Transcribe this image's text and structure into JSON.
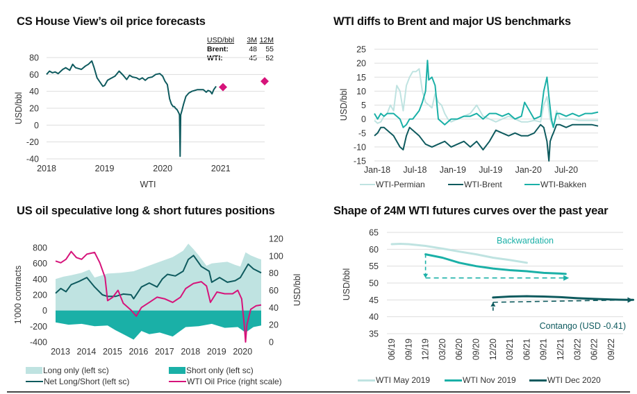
{
  "colors": {
    "dark_teal": "#0e5a5e",
    "teal": "#1ab0a7",
    "light_teal": "#bfe3e1",
    "magenta": "#d6137a",
    "grid": "#dddddd"
  },
  "chart_data": [
    {
      "id": "cs-house-view",
      "type": "line",
      "title": "CS House View’s oil price forecasts",
      "xlabel": "WTI",
      "ylabel": "USD/bbl",
      "x_ticks": [
        "2018",
        "2019",
        "2020",
        "2021"
      ],
      "y_ticks": [
        80,
        60,
        40,
        20,
        0,
        -20,
        -40
      ],
      "xlim": [
        2018.0,
        2021.9
      ],
      "ylim": [
        -40,
        80
      ],
      "grid": true,
      "series": [
        {
          "name": "WTI",
          "color": "#0e5a5e",
          "x": [
            2018.0,
            2018.05,
            2018.1,
            2018.15,
            2018.2,
            2018.28,
            2018.33,
            2018.4,
            2018.45,
            2018.5,
            2018.55,
            2018.6,
            2018.67,
            2018.72,
            2018.78,
            2018.82,
            2018.87,
            2018.92,
            2018.97,
            2019.0,
            2019.05,
            2019.1,
            2019.18,
            2019.25,
            2019.32,
            2019.38,
            2019.43,
            2019.48,
            2019.55,
            2019.6,
            2019.65,
            2019.7,
            2019.75,
            2019.82,
            2019.88,
            2019.95,
            2020.0,
            2020.04,
            2020.08,
            2020.12,
            2020.15,
            2020.18,
            2020.2,
            2020.22,
            2020.25,
            2020.28,
            2020.29,
            2020.3,
            2020.31,
            2020.33,
            2020.36,
            2020.4,
            2020.45,
            2020.5,
            2020.55,
            2020.6,
            2020.65,
            2020.7,
            2020.75,
            2020.78,
            2020.82,
            2020.85,
            2020.88,
            2020.92
          ],
          "y": [
            60,
            64,
            62,
            63,
            61,
            66,
            68,
            65,
            72,
            68,
            67,
            66,
            70,
            72,
            76,
            68,
            56,
            51,
            46,
            47,
            53,
            55,
            58,
            64,
            59,
            54,
            59,
            57,
            56,
            54,
            56,
            53,
            56,
            57,
            60,
            61,
            58,
            52,
            48,
            31,
            25,
            22,
            22,
            20,
            18,
            14,
            12,
            -37,
            12,
            17,
            25,
            34,
            38,
            40,
            41,
            42,
            42,
            42,
            39,
            41,
            40,
            37,
            42,
            46
          ]
        }
      ],
      "forecast_points": [
        {
          "label": "WTI 3M",
          "x": 2021.2,
          "y": 45,
          "color": "#d6137a"
        },
        {
          "label": "WTI 12M",
          "x": 2021.95,
          "y": 52,
          "color": "#d6137a"
        }
      ],
      "table": {
        "headers": [
          "USD/bbl",
          "3M",
          "12M"
        ],
        "rows": [
          {
            "name": "Brent:",
            "m3": "48",
            "m12": "55"
          },
          {
            "name": "WTI:",
            "m3": "45",
            "m12": "52"
          }
        ]
      }
    },
    {
      "id": "wti-diffs",
      "type": "line",
      "title": "WTI diffs to Brent and major US benchmarks",
      "xlabel": "",
      "ylabel": "USD/bbl",
      "x_ticks": [
        "Jan-18",
        "Jul-18",
        "Jan-19",
        "Jul-19",
        "Jan-20",
        "Jul-20"
      ],
      "y_ticks": [
        25,
        20,
        15,
        10,
        5,
        0,
        -5,
        -10,
        -15
      ],
      "xlim": [
        0,
        35
      ],
      "ylim": [
        -15,
        25
      ],
      "grid": true,
      "legend": "bottom",
      "series": [
        {
          "name": "WTI-Permian",
          "color": "#bfe3e1",
          "x": [
            0,
            0.5,
            1,
            1.5,
            2,
            2.5,
            3,
            3.5,
            4,
            4.5,
            5,
            5.5,
            6,
            6.5,
            7,
            7.5,
            8,
            8.5,
            9,
            9.5,
            10,
            10.5,
            11,
            11.5,
            12,
            13,
            14,
            15,
            16,
            17,
            18,
            19,
            20,
            21,
            22,
            23,
            24,
            25,
            26,
            26.5,
            27,
            27.5,
            28,
            28.5,
            29,
            30,
            31,
            32,
            33,
            34,
            35
          ],
          "y": [
            -0.5,
            -1.5,
            -1,
            1,
            2,
            5,
            3,
            12,
            10,
            3,
            12,
            15,
            17,
            17,
            18,
            10,
            6,
            5,
            4,
            9,
            6,
            5,
            2,
            0,
            -1,
            0,
            1,
            2,
            5,
            1,
            0,
            -1,
            0,
            1,
            0,
            -1,
            -1,
            -0.5,
            -1,
            5,
            8,
            0,
            -3,
            3,
            0,
            0,
            0,
            -0.5,
            -0.5,
            -0.5,
            -0.5
          ]
        },
        {
          "name": "WTI-Brent",
          "color": "#0e5a5e",
          "x": [
            0,
            0.5,
            1,
            1.5,
            2,
            3,
            4,
            4.5,
            5,
            5.5,
            6,
            6.5,
            7,
            8,
            9,
            10,
            11,
            12,
            13,
            14,
            15,
            16,
            17,
            18,
            19,
            20,
            21,
            22,
            23,
            24,
            25,
            26,
            26.5,
            27,
            27.3,
            27.5,
            27.8,
            28,
            28.5,
            29,
            30,
            31,
            32,
            33,
            34,
            35
          ],
          "y": [
            -6,
            -5,
            -3,
            -3,
            -4,
            -6,
            -10,
            -11,
            -6,
            -3,
            -4,
            -5,
            -6,
            -9,
            -10,
            -9,
            -8,
            -10,
            -9,
            -8,
            -10,
            -8,
            -11,
            -8,
            -4,
            -5,
            -6,
            -5,
            -6,
            -6,
            -5,
            -2,
            -3,
            -8,
            -15,
            -8,
            -6,
            -5,
            -2,
            -2,
            -3,
            -2,
            -2,
            -2,
            -2,
            -2.5
          ]
        },
        {
          "name": "WTI-Bakken",
          "color": "#1ab0a7",
          "x": [
            0,
            0.5,
            1,
            1.5,
            2,
            3,
            4,
            4.5,
            5,
            5.5,
            6,
            7,
            7.5,
            8,
            8.3,
            8.5,
            9,
            9.5,
            10,
            11,
            12,
            13,
            14,
            15,
            16,
            17,
            18,
            19,
            20,
            21,
            22,
            23,
            23.5,
            24,
            25,
            26,
            26.5,
            27,
            27.3,
            27.7,
            28,
            28.5,
            29,
            30,
            31,
            32,
            33,
            34,
            35
          ],
          "y": [
            2,
            0,
            2,
            1,
            2,
            2,
            0,
            -3,
            -2,
            0,
            0,
            3,
            6,
            10,
            21,
            14,
            15,
            12,
            0,
            -2,
            0,
            0,
            1,
            1,
            2,
            0,
            2,
            2,
            1,
            2,
            0,
            1,
            6,
            4,
            0,
            1,
            10,
            15,
            8,
            0,
            -3,
            2,
            2,
            1,
            2,
            1,
            2,
            2,
            2.5
          ]
        }
      ]
    },
    {
      "id": "speculative-positions",
      "type": "area",
      "title": "US oil speculative long & short futures positions",
      "ylabel_left": "1'000 contracts",
      "ylabel_right": "USD/bbl",
      "x_ticks": [
        "2013",
        "2014",
        "2015",
        "2016",
        "2017",
        "2018",
        "2019",
        "2020"
      ],
      "y_ticks_left": [
        800,
        600,
        400,
        200,
        0,
        -200,
        -400
      ],
      "y_ticks_right": [
        120,
        100,
        80,
        60,
        40,
        20,
        0
      ],
      "xlim": [
        2013.0,
        2020.9
      ],
      "ylim_left": [
        -400,
        800
      ],
      "ylim_right": [
        0,
        120
      ],
      "legend": "bottom",
      "series": [
        {
          "name": "Long only (left sc)",
          "kind": "area",
          "axis": "left",
          "color": "#bfe3e1",
          "x": [
            2013.0,
            2013.3,
            2013.6,
            2014.0,
            2014.3,
            2014.5,
            2015.0,
            2015.5,
            2016.0,
            2016.5,
            2017.0,
            2017.5,
            2017.9,
            2018.1,
            2018.3,
            2018.5,
            2018.8,
            2019.0,
            2019.3,
            2019.6,
            2019.9,
            2020.1,
            2020.3,
            2020.5,
            2020.8,
            2020.9
          ],
          "y": [
            400,
            430,
            450,
            480,
            520,
            420,
            470,
            480,
            500,
            560,
            620,
            680,
            760,
            850,
            780,
            700,
            570,
            600,
            610,
            620,
            580,
            560,
            740,
            700,
            660,
            650
          ]
        },
        {
          "name": "Short only (left sc)",
          "kind": "area",
          "axis": "left",
          "color": "#1ab0a7",
          "x": [
            2013.0,
            2013.5,
            2014.0,
            2014.5,
            2015.0,
            2015.3,
            2015.6,
            2016.0,
            2016.3,
            2016.6,
            2017.0,
            2017.5,
            2018.0,
            2018.5,
            2019.0,
            2019.5,
            2020.0,
            2020.3,
            2020.6,
            2020.9
          ],
          "y": [
            -150,
            -180,
            -170,
            -200,
            -190,
            -250,
            -300,
            -370,
            -260,
            -300,
            -280,
            -330,
            -210,
            -200,
            -170,
            -220,
            -210,
            -280,
            -210,
            -190
          ]
        },
        {
          "name": "Net Long/Short (left sc)",
          "kind": "line",
          "axis": "left",
          "color": "#0e5a5e",
          "x": [
            2013.0,
            2013.2,
            2013.4,
            2013.6,
            2013.9,
            2014.2,
            2014.5,
            2014.8,
            2015.0,
            2015.3,
            2015.6,
            2015.9,
            2016.0,
            2016.3,
            2016.6,
            2016.9,
            2017.1,
            2017.3,
            2017.6,
            2017.9,
            2018.1,
            2018.3,
            2018.6,
            2018.9,
            2019.0,
            2019.3,
            2019.6,
            2019.9,
            2020.1,
            2020.4,
            2020.6,
            2020.9
          ],
          "y": [
            220,
            280,
            240,
            330,
            370,
            420,
            300,
            200,
            180,
            180,
            210,
            200,
            150,
            300,
            350,
            300,
            400,
            460,
            440,
            500,
            650,
            700,
            560,
            500,
            360,
            420,
            360,
            380,
            420,
            590,
            530,
            480
          ]
        },
        {
          "name": "WTI Oil Price (right scale)",
          "kind": "line",
          "axis": "right",
          "color": "#d6137a",
          "x": [
            2013.0,
            2013.2,
            2013.4,
            2013.6,
            2013.8,
            2014.0,
            2014.2,
            2014.5,
            2014.7,
            2014.9,
            2015.0,
            2015.2,
            2015.4,
            2015.6,
            2015.9,
            2016.1,
            2016.3,
            2016.6,
            2016.9,
            2017.2,
            2017.5,
            2017.8,
            2018.0,
            2018.3,
            2018.6,
            2018.8,
            2018.95,
            2019.2,
            2019.5,
            2019.8,
            2020.0,
            2020.15,
            2020.25,
            2020.3,
            2020.35,
            2020.5,
            2020.7,
            2020.9
          ],
          "y": [
            94,
            92,
            96,
            105,
            98,
            96,
            102,
            104,
            92,
            75,
            48,
            52,
            60,
            45,
            37,
            30,
            40,
            46,
            52,
            50,
            46,
            52,
            62,
            68,
            70,
            65,
            46,
            58,
            56,
            56,
            60,
            50,
            20,
            0,
            20,
            38,
            42,
            43
          ]
        }
      ]
    },
    {
      "id": "futures-curves",
      "type": "line",
      "title": "Shape of 24M WTI futures curves over the past year",
      "ylabel": "USD/bbl",
      "x_ticks": [
        "06/19",
        "09/19",
        "12/19",
        "03/20",
        "06/20",
        "09/20",
        "12/20",
        "03/21",
        "06/21",
        "09/21",
        "12/21",
        "03/22",
        "06/22",
        "09/22"
      ],
      "y_ticks": [
        65,
        60,
        55,
        50,
        45,
        40,
        35
      ],
      "xlim": [
        -0.5,
        14.5
      ],
      "ylim": [
        35,
        65
      ],
      "grid": true,
      "legend": "bottom",
      "series": [
        {
          "name": "WTI May 2019",
          "color": "#bfe3e1",
          "x": [
            0,
            0.5,
            1,
            2,
            3,
            4,
            5,
            6,
            7,
            8
          ],
          "y": [
            61.5,
            61.6,
            61.5,
            61,
            60.2,
            59.3,
            58.5,
            57.5,
            56.8,
            56.0
          ]
        },
        {
          "name": "WTI Nov 2019",
          "color": "#1ab0a7",
          "x": [
            2,
            3,
            4,
            5,
            6,
            7,
            8,
            9,
            10,
            10.3
          ],
          "y": [
            58.5,
            57.5,
            56.0,
            55.0,
            54.3,
            53.8,
            53.5,
            53.0,
            52.8,
            52.7
          ]
        },
        {
          "name": "WTI Dec 2020",
          "color": "#0e5a5e",
          "x": [
            6,
            7,
            8,
            9,
            10,
            11,
            12,
            13,
            14,
            14.3
          ],
          "y": [
            45.7,
            46.0,
            46.1,
            46.0,
            45.8,
            45.5,
            45.3,
            45.1,
            45.0,
            45.0
          ]
        }
      ],
      "annotations": [
        {
          "text": "Backwardation",
          "color": "#1ab0a7",
          "x": 8.5,
          "y": 62.5
        },
        {
          "text": "Contango (USD -0.41)",
          "color": "#0e5a5e",
          "x": 14.2,
          "y": 37.5
        }
      ],
      "arrows": [
        {
          "name": "backwardation-arrow",
          "color": "#1ab0a7",
          "from": [
            2,
            58.5
          ],
          "corner": [
            2,
            51.5
          ],
          "to": [
            10.5,
            51.5
          ]
        },
        {
          "name": "contango-arrow",
          "color": "#0e5a5e",
          "from": [
            6,
            41.8
          ],
          "corner": [
            6,
            44.3
          ],
          "to": [
            14.3,
            45.0
          ]
        }
      ]
    }
  ]
}
